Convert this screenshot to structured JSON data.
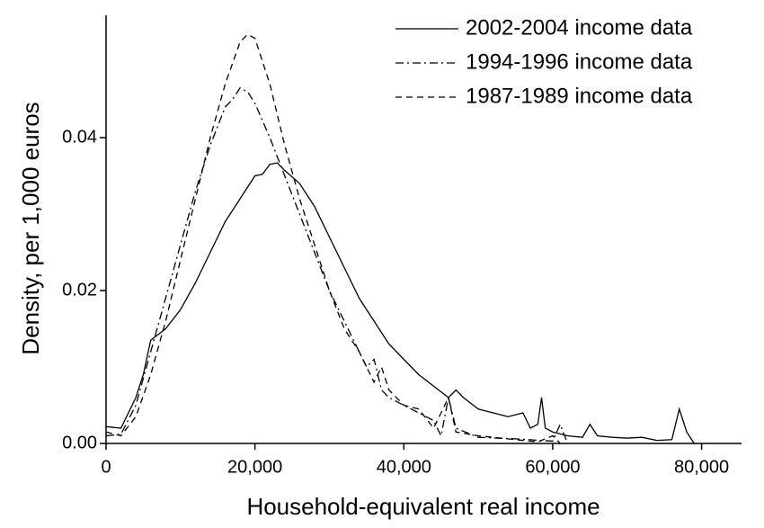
{
  "chart_data": {
    "type": "line",
    "x_label": "Household-equivalent real income",
    "y_label": "Density, per 1,000 euros",
    "xlim": [
      0,
      85000
    ],
    "ylim": [
      0,
      0.056
    ],
    "xticks": [
      0,
      {
        "value": 20000,
        "label": "20,000"
      },
      {
        "value": 40000,
        "label": "40,000"
      },
      {
        "value": 60000,
        "label": "60,000"
      },
      {
        "value": 80000,
        "label": "80,000"
      }
    ],
    "yticks": [
      {
        "value": 0,
        "label": "0.00"
      },
      {
        "value": 0.02,
        "label": "0.02"
      },
      {
        "value": 0.04,
        "label": "0.04"
      }
    ],
    "legend": "upper right",
    "series": [
      {
        "name": "2002-2004 income data",
        "color": "#000000",
        "linestyle": "solid",
        "x": [
          0,
          2000,
          4000,
          5000,
          6000,
          8000,
          10000,
          12000,
          14000,
          16000,
          18000,
          20000,
          21000,
          22000,
          23000,
          24000,
          26000,
          28000,
          30000,
          32000,
          34000,
          36000,
          38000,
          40000,
          42000,
          44000,
          46000,
          47000,
          48000,
          50000,
          52000,
          54000,
          56000,
          57000,
          58000,
          58500,
          59000,
          60000,
          62000,
          64000,
          65000,
          66000,
          68000,
          70000,
          72000,
          74000,
          76000,
          77000,
          78000,
          79000
        ],
        "values": [
          0.0022,
          0.002,
          0.006,
          0.009,
          0.0135,
          0.015,
          0.0175,
          0.021,
          0.025,
          0.029,
          0.032,
          0.035,
          0.0352,
          0.0365,
          0.0367,
          0.0357,
          0.034,
          0.031,
          0.027,
          0.023,
          0.019,
          0.016,
          0.013,
          0.011,
          0.009,
          0.0075,
          0.006,
          0.007,
          0.006,
          0.0045,
          0.004,
          0.0035,
          0.004,
          0.002,
          0.0025,
          0.006,
          0.002,
          0.0015,
          0.001,
          0.0008,
          0.0025,
          0.001,
          0.0008,
          0.0007,
          0.0008,
          0.0004,
          0.0005,
          0.0045,
          0.0015,
          0
        ]
      },
      {
        "name": "1994-1996 income data",
        "color": "#000000",
        "linestyle": "dashdot",
        "x": [
          0,
          2000,
          4000,
          6000,
          8000,
          10000,
          12000,
          14000,
          16000,
          17000,
          18000,
          19000,
          20000,
          22000,
          24000,
          26000,
          28000,
          30000,
          32000,
          34000,
          35000,
          36000,
          37000,
          38000,
          40000,
          42000,
          44000,
          45000,
          46000,
          47000,
          50000,
          55000,
          60000,
          61000,
          62000
        ],
        "values": [
          0.001,
          0.0012,
          0.005,
          0.012,
          0.019,
          0.026,
          0.033,
          0.039,
          0.044,
          0.045,
          0.0465,
          0.046,
          0.0445,
          0.04,
          0.035,
          0.03,
          0.025,
          0.02,
          0.016,
          0.012,
          0.01,
          0.011,
          0.007,
          0.006,
          0.005,
          0.004,
          0.003,
          0.001,
          0.006,
          0.002,
          0.0008,
          0.0006,
          0.0003,
          0.0025,
          0
        ]
      },
      {
        "name": "1987-1989 income data",
        "color": "#000000",
        "linestyle": "dashed",
        "x": [
          0,
          2000,
          4000,
          6000,
          8000,
          10000,
          12000,
          14000,
          16000,
          18000,
          19000,
          20000,
          22000,
          24000,
          26000,
          28000,
          30000,
          32000,
          34000,
          36000,
          37000,
          38000,
          40000,
          42000,
          44000,
          46000,
          47000,
          50000,
          55000,
          58000,
          60000,
          61000
        ],
        "values": [
          0.0015,
          0.001,
          0.0035,
          0.009,
          0.016,
          0.024,
          0.032,
          0.04,
          0.047,
          0.0525,
          0.0535,
          0.053,
          0.047,
          0.039,
          0.032,
          0.026,
          0.02,
          0.015,
          0.012,
          0.008,
          0.01,
          0.007,
          0.005,
          0.0045,
          0.002,
          0.006,
          0.0015,
          0.001,
          0.0005,
          0.0002,
          0.001,
          0
        ]
      }
    ]
  }
}
